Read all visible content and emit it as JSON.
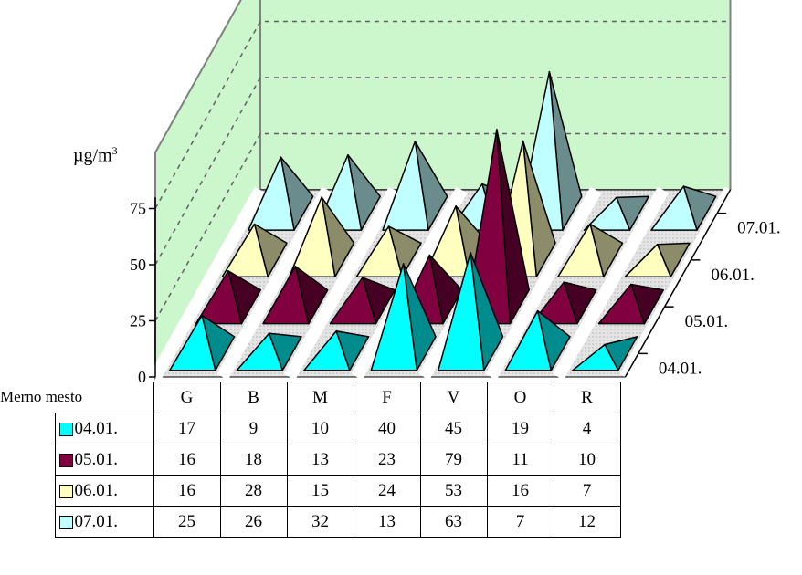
{
  "chart_data": {
    "type": "bar",
    "subtype": "3d-pyramid",
    "ylabel_unit": "µg/m",
    "ylabel_sup": "3",
    "ylim": [
      0,
      100
    ],
    "yticks": [
      0,
      25,
      50,
      75
    ],
    "grid": true,
    "categories": [
      "G",
      "B",
      "M",
      "F",
      "V",
      "O",
      "R"
    ],
    "category_header": "Merno mesto",
    "series": [
      {
        "name": "04.01.",
        "color": "#00ffff",
        "values": [
          17,
          9,
          10,
          40,
          45,
          19,
          4
        ]
      },
      {
        "name": "05.01.",
        "color": "#800040",
        "values": [
          16,
          18,
          13,
          23,
          79,
          11,
          10
        ]
      },
      {
        "name": "06.01.",
        "color": "#ffffc0",
        "values": [
          16,
          28,
          15,
          24,
          53,
          16,
          7
        ]
      },
      {
        "name": "07.01.",
        "color": "#c0ffff",
        "values": [
          25,
          26,
          32,
          13,
          63,
          7,
          12
        ]
      }
    ]
  }
}
